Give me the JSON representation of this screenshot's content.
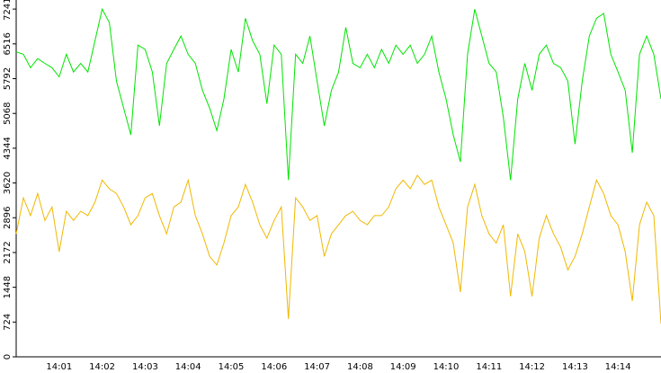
{
  "chart_data": {
    "type": "line",
    "categories": [
      null,
      null,
      null,
      null,
      null,
      null,
      "14:01",
      null,
      null,
      null,
      null,
      null,
      "14:02",
      null,
      null,
      null,
      null,
      null,
      "14:03",
      null,
      null,
      null,
      null,
      null,
      "14:04",
      null,
      null,
      null,
      null,
      null,
      "14:05",
      null,
      null,
      null,
      null,
      null,
      "14:06",
      null,
      null,
      null,
      null,
      null,
      "14:07",
      null,
      null,
      null,
      null,
      null,
      "14:08",
      null,
      null,
      null,
      null,
      null,
      "14:09",
      null,
      null,
      null,
      null,
      null,
      "14:10",
      null,
      null,
      null,
      null,
      null,
      "14:11",
      null,
      null,
      null,
      null,
      null,
      "14:12",
      null,
      null,
      null,
      null,
      null,
      "14:13",
      null,
      null,
      null,
      null,
      null,
      "14:14",
      null,
      null,
      null,
      null,
      null,
      null
    ],
    "series": [
      {
        "color": "#00e400",
        "values": [
          6350,
          6300,
          6020,
          6210,
          6110,
          6020,
          5830,
          6300,
          5930,
          6110,
          5930,
          6580,
          7240,
          6960,
          5740,
          5180,
          4620,
          6490,
          6400,
          5930,
          4810,
          6110,
          6400,
          6680,
          6300,
          6110,
          5550,
          5180,
          4710,
          5370,
          6400,
          5930,
          7050,
          6580,
          6300,
          5270,
          6490,
          6300,
          3680,
          6300,
          6110,
          6680,
          5740,
          4810,
          5550,
          5930,
          6860,
          6110,
          6020,
          6300,
          6020,
          6400,
          6110,
          6490,
          6300,
          6490,
          6110,
          6300,
          6680,
          5930,
          5370,
          4620,
          4060,
          6300,
          7240,
          6680,
          6110,
          5930,
          4990,
          3680,
          5370,
          6110,
          5550,
          6300,
          6490,
          6110,
          6020,
          5740,
          4430,
          5740,
          6680,
          7050,
          7150,
          6300,
          5930,
          5550,
          4250,
          6300,
          6680,
          6300,
          5370
        ]
      },
      {
        "color": "#f0b800",
        "values": [
          2560,
          3310,
          2940,
          3400,
          2840,
          3120,
          2190,
          3030,
          2840,
          3030,
          2940,
          3220,
          3680,
          3500,
          3400,
          3120,
          2750,
          2940,
          3310,
          3400,
          2940,
          2560,
          3120,
          3220,
          3680,
          2940,
          2560,
          2090,
          1910,
          2370,
          2940,
          3120,
          3590,
          3220,
          2750,
          2470,
          2840,
          3120,
          790,
          3310,
          3120,
          2840,
          2940,
          2090,
          2560,
          2750,
          2940,
          3030,
          2840,
          2750,
          2940,
          2940,
          3120,
          3500,
          3680,
          3500,
          3780,
          3590,
          3680,
          3120,
          2750,
          2370,
          1350,
          3120,
          3590,
          2940,
          2560,
          2370,
          2750,
          1260,
          2560,
          2190,
          1260,
          2470,
          2940,
          2560,
          2280,
          1810,
          2090,
          2560,
          3120,
          3680,
          3400,
          2940,
          2750,
          2190,
          1160,
          2750,
          3220,
          2940,
          690
        ]
      }
    ],
    "ylim": [
      0,
      7430
    ],
    "yticks": [
      0,
      724,
      1448,
      2172,
      2896,
      3620,
      4344,
      5068,
      5792,
      6516,
      7241
    ]
  }
}
